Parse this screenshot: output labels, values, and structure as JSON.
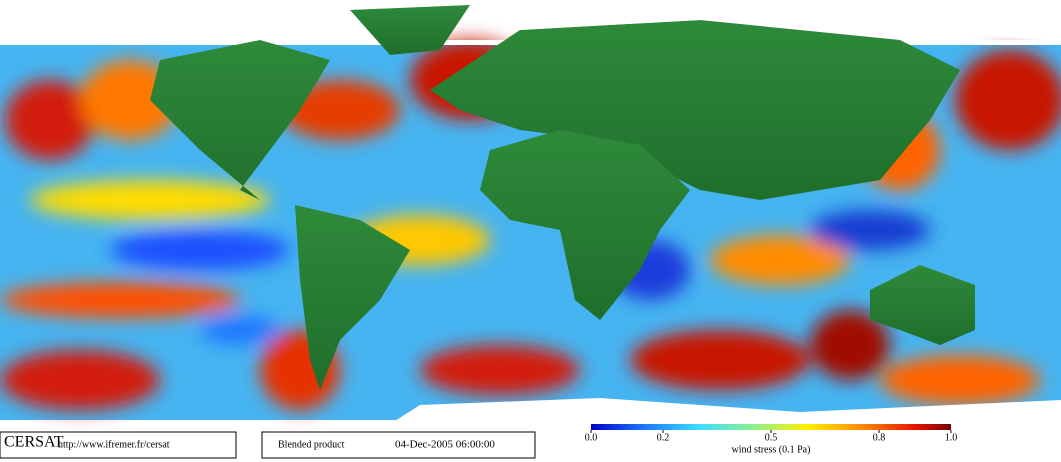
{
  "footer": {
    "logo": "CERSAT",
    "url": "http://www.ifremer.fr/cersat",
    "product": "Blended product",
    "date": "04-Dec-2005 06:00:00"
  },
  "colorbar": {
    "lim": [
      0,
      1
    ],
    "ticks": [
      {
        "value": 0,
        "label": "0.0"
      },
      0.2,
      0.5,
      0.8,
      {
        "value": 1,
        "label": "1.0"
      }
    ],
    "label": "wind stress (0.1 Pa)"
  }
}
